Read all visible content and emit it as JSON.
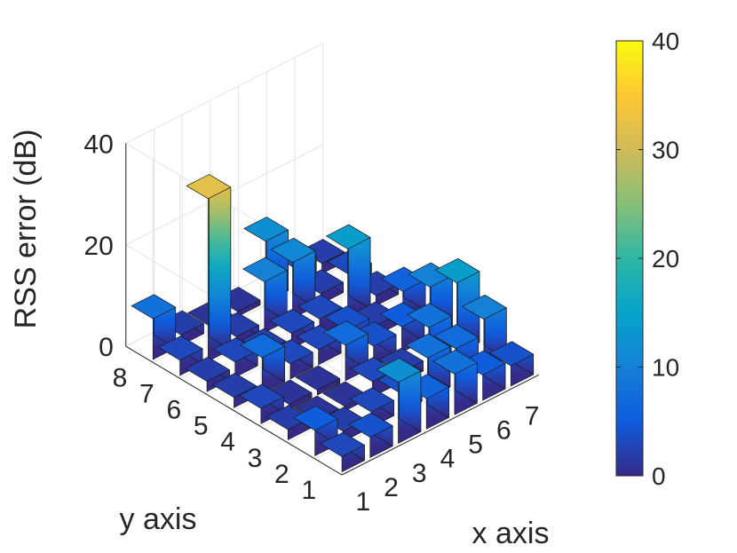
{
  "chart_data": {
    "type": "bar3d",
    "title": "",
    "xlabel": "x axis",
    "ylabel": "y axis",
    "zlabel": "RSS error (dB)",
    "x": [
      1,
      2,
      3,
      4,
      5,
      6,
      7
    ],
    "y": [
      1,
      2,
      3,
      4,
      5,
      6,
      7,
      8
    ],
    "zlim": [
      0,
      40
    ],
    "zticks": [
      0,
      20,
      40
    ],
    "colorbar": {
      "ticks": [
        0,
        10,
        20,
        30,
        40
      ],
      "range": [
        0,
        40
      ],
      "colormap": "parula"
    },
    "grid": true,
    "values": [
      [
        3,
        4,
        12,
        6,
        8,
        5,
        4
      ],
      [
        5,
        2,
        3,
        4,
        8,
        7,
        10
      ],
      [
        2,
        1,
        1,
        3,
        2,
        8,
        14
      ],
      [
        3,
        1,
        1,
        7,
        4,
        5,
        10
      ],
      [
        2,
        7,
        3,
        3,
        4,
        2,
        6
      ],
      [
        2,
        3,
        2,
        3,
        3,
        14,
        2
      ],
      [
        3,
        32,
        2,
        10,
        11,
        2,
        3
      ],
      [
        8,
        2,
        1,
        1,
        12,
        4,
        2
      ]
    ]
  }
}
